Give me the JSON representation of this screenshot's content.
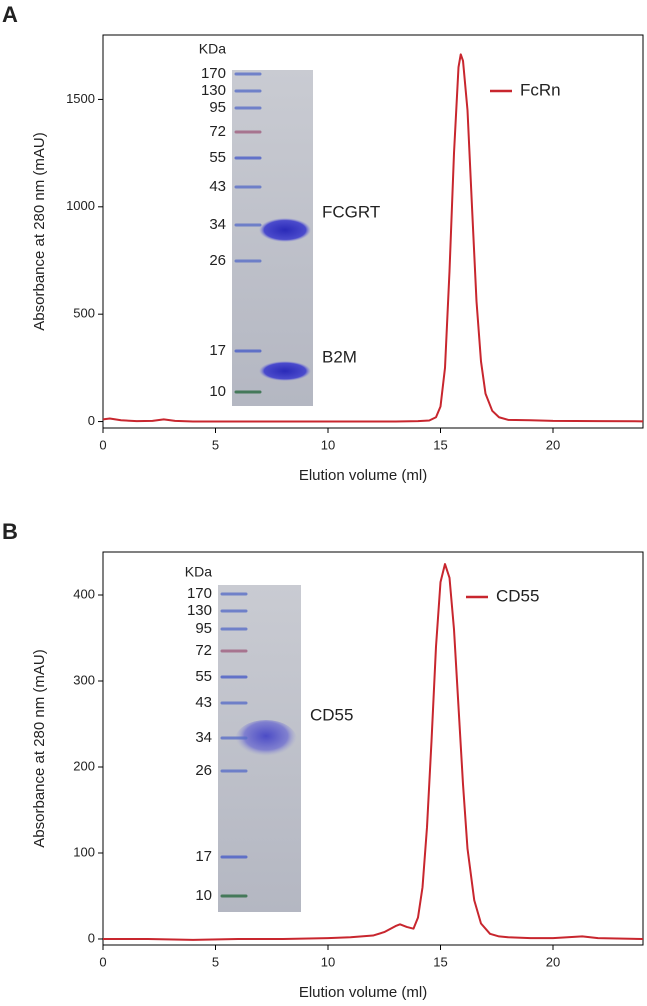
{
  "chart_data": [
    {
      "type": "line",
      "panel": "A",
      "x_label": "Elution volume (ml)",
      "y_label": "Absorbance at 280 nm (mAU)",
      "xlim": [
        0,
        24
      ],
      "ylim": [
        -30,
        1800
      ],
      "xticks": [
        0,
        5,
        10,
        15,
        20
      ],
      "yticks": [
        0,
        500,
        1000,
        1500
      ],
      "x": [
        0,
        0.3,
        0.8,
        1.5,
        2.2,
        2.7,
        3.2,
        4,
        6,
        8,
        10,
        12,
        13,
        14,
        14.5,
        14.8,
        15,
        15.2,
        15.4,
        15.6,
        15.8,
        15.9,
        16.0,
        16.2,
        16.4,
        16.6,
        16.8,
        17.0,
        17.3,
        17.6,
        18,
        19,
        20,
        22,
        24
      ],
      "series": [
        {
          "name": "FcRn",
          "color": "#c8262e",
          "values": [
            10,
            14,
            6,
            2,
            3,
            10,
            3,
            0,
            0,
            0,
            0,
            0,
            0,
            2,
            5,
            20,
            70,
            250,
            700,
            1250,
            1650,
            1710,
            1680,
            1450,
            1000,
            560,
            280,
            130,
            50,
            20,
            8,
            6,
            3,
            2,
            1
          ]
        }
      ],
      "gel": {
        "unit": "KDa",
        "markers": [
          "170",
          "130",
          "95",
          "72",
          "55",
          "43",
          "34",
          "26",
          "17",
          "10"
        ],
        "bands": [
          "FCGRT",
          "B2M"
        ]
      }
    },
    {
      "type": "line",
      "panel": "B",
      "x_label": "Elution volume (ml)",
      "y_label": "Absorbance at 280 nm (mAU)",
      "xlim": [
        0,
        24
      ],
      "ylim": [
        -7,
        450
      ],
      "xticks": [
        0,
        5,
        10,
        15,
        20
      ],
      "yticks": [
        0,
        100,
        200,
        300,
        400
      ],
      "x": [
        0,
        2,
        4,
        6,
        8,
        10,
        11,
        12,
        12.5,
        13,
        13.2,
        13.5,
        13.8,
        14.0,
        14.2,
        14.4,
        14.6,
        14.8,
        15.0,
        15.2,
        15.4,
        15.6,
        15.8,
        16.0,
        16.2,
        16.5,
        16.8,
        17.2,
        17.6,
        18,
        19,
        20,
        21.3,
        22,
        24
      ],
      "series": [
        {
          "name": "CD55",
          "color": "#c8262e",
          "values": [
            0,
            0,
            -1,
            0,
            0,
            1,
            2,
            4,
            8,
            15,
            17,
            14,
            12,
            25,
            60,
            130,
            230,
            340,
            415,
            436,
            420,
            360,
            270,
            180,
            105,
            45,
            18,
            6,
            3,
            2,
            1,
            1,
            3,
            1,
            0
          ]
        }
      ],
      "gel": {
        "unit": "KDa",
        "markers": [
          "170",
          "130",
          "95",
          "72",
          "55",
          "43",
          "34",
          "26",
          "17",
          "10"
        ],
        "bands": [
          "CD55"
        ]
      }
    }
  ]
}
